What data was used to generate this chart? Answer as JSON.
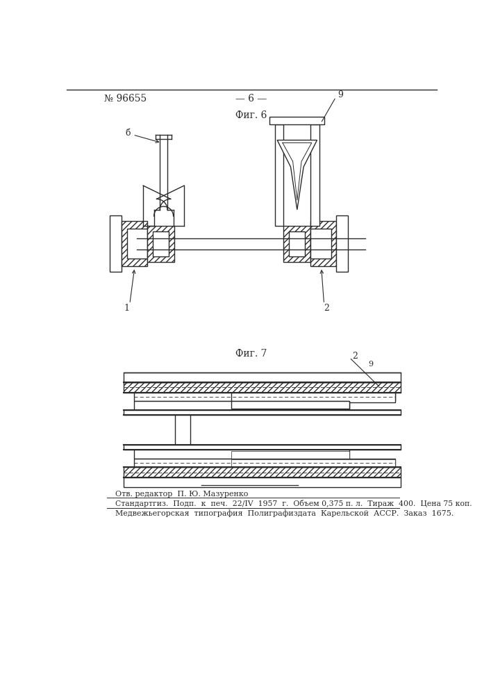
{
  "page_number": "№ 96655",
  "page_num_center": "— 6 —",
  "fig6_label": "Фиг. 6",
  "fig7_label": "Фиг. 7",
  "footer_line1": "Отв. редактор  П. Ю. Мазуренко",
  "footer_line2": "Стандартгиз.  Подп.  к  печ.  22/IV  1957  г.  Объем 0,375 п. л.  Тираж  400.  Цена 75 коп.",
  "footer_line3": "Медвежьегорская  типография  Полиграфиздата  Карельской  АССР.  Заказ  1675.",
  "bg_color": "#ffffff",
  "line_color": "#2a2a2a",
  "label1": "1",
  "label2": "2",
  "label_b": "б",
  "label9": "9"
}
